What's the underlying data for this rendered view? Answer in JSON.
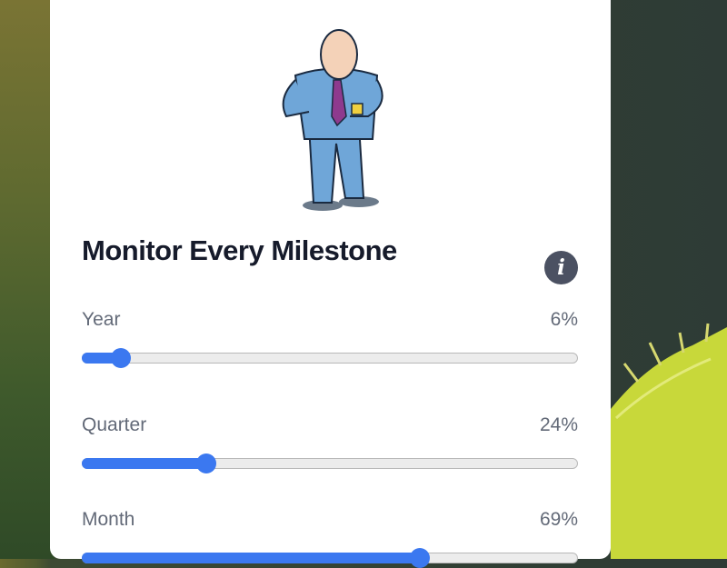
{
  "card": {
    "title": "Monitor Every Milestone",
    "info_icon": "info-icon",
    "illustration": "cartoon-businessman-checking-watch"
  },
  "sliders": [
    {
      "label": "Year",
      "value_text": "6%",
      "value": 6
    },
    {
      "label": "Quarter",
      "value_text": "24%",
      "value": 24
    },
    {
      "label": "Month",
      "value_text": "69%",
      "value": 69
    }
  ],
  "colors": {
    "accent": "#3b78f0",
    "title": "#161b2b",
    "label": "#636a78"
  }
}
